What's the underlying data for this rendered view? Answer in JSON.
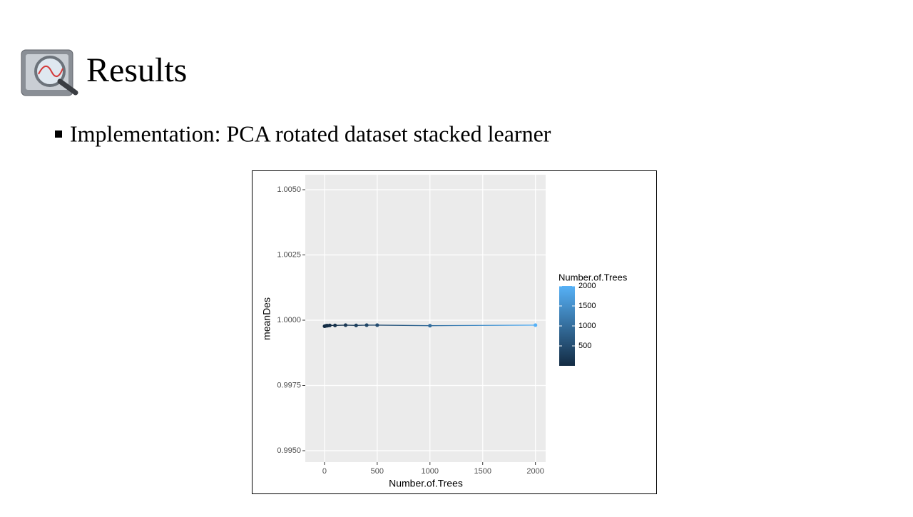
{
  "slide": {
    "title": "Results",
    "bullet": "Implementation: PCA rotated dataset stacked learner"
  },
  "chart_data": {
    "type": "line",
    "markers": true,
    "x_label": "Number.of.Trees",
    "y_label": "meanDes",
    "x": [
      1,
      10,
      20,
      30,
      50,
      100,
      200,
      300,
      400,
      500,
      1000,
      2000
    ],
    "values": [
      0.99977,
      0.99978,
      0.99979,
      0.99979,
      0.9998,
      0.9998,
      0.99981,
      0.9998,
      0.99981,
      0.99981,
      0.99979,
      0.99981
    ],
    "xlim": [
      -182,
      2097
    ],
    "xticks": [
      0,
      500,
      1000,
      1500,
      2000
    ],
    "ylim": [
      0.994563,
      1.005574
    ],
    "yticks": [
      {
        "value": 1.005,
        "label": "1.0050"
      },
      1.0025,
      {
        "value": 1.0,
        "label": "1.0000"
      },
      0.9975,
      {
        "value": 0.995,
        "label": "0.9950"
      }
    ],
    "grid": true,
    "legend": {
      "title": "Number.of.Trees",
      "low_color": "#132B43",
      "high_color": "#56B1F7",
      "ticks": [
        500,
        1000,
        1500,
        2000
      ]
    }
  }
}
